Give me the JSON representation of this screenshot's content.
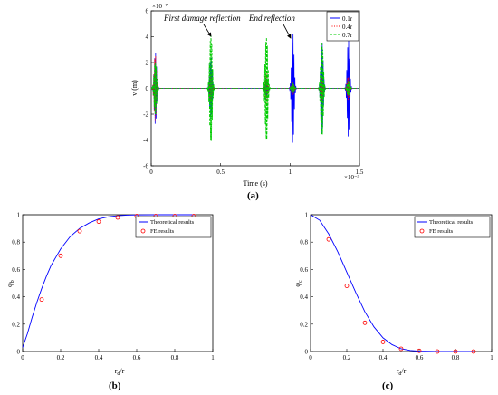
{
  "panel_labels": {
    "a": "(a)",
    "b": "(b)",
    "c": "(c)"
  },
  "chart_data": [
    {
      "type": "line",
      "panel": "(a)",
      "xlabel": "Time (s)",
      "ylabel": "v (m)",
      "x_multiplier": "×10⁻³",
      "y_multiplier": "×10⁻⁷",
      "xlim": [
        0,
        1.5
      ],
      "ylim": [
        -6,
        6
      ],
      "xticks": [
        0,
        0.5,
        1,
        1.5
      ],
      "xtick_labels": [
        "0",
        "0.5",
        "1",
        "1.5"
      ],
      "yticks": [
        -6,
        -4,
        -2,
        0,
        2,
        4,
        6
      ],
      "ytick_labels": [
        "-6",
        "-4",
        "-2",
        "0",
        "2",
        "4",
        "6"
      ],
      "legend": {
        "placement": "top-right"
      },
      "annotations": [
        "First damage reflection",
        "End reflection"
      ],
      "series": [
        {
          "name": "0.1r",
          "color": "#0000ff",
          "dash": "solid",
          "packets": [
            {
              "t": 0.03,
              "amp": 2.8
            },
            {
              "t": 0.43,
              "amp": 2.4
            },
            {
              "t": 0.83,
              "amp": 0.8
            },
            {
              "t": 1.02,
              "amp": 4.3
            },
            {
              "t": 1.23,
              "amp": 3.6
            },
            {
              "t": 1.42,
              "amp": 3.8
            }
          ]
        },
        {
          "name": "0.4r",
          "color": "#ff0000",
          "dash": "dotted",
          "packets": [
            {
              "t": 0.03,
              "amp": 2.8
            },
            {
              "t": 0.43,
              "amp": 1.2
            },
            {
              "t": 0.83,
              "amp": 1.4
            },
            {
              "t": 1.02,
              "amp": 0.6
            },
            {
              "t": 1.23,
              "amp": 1.0
            },
            {
              "t": 1.42,
              "amp": 1.0
            }
          ]
        },
        {
          "name": "0.7r",
          "color": "#00cc00",
          "dash": "dashed",
          "packets": [
            {
              "t": 0.03,
              "amp": 2.8
            },
            {
              "t": 0.43,
              "amp": 5.7
            },
            {
              "t": 0.83,
              "amp": 5.5
            },
            {
              "t": 1.02,
              "amp": 0.5
            },
            {
              "t": 1.23,
              "amp": 5.0
            },
            {
              "t": 1.42,
              "amp": 0.8
            }
          ]
        }
      ]
    },
    {
      "type": "line",
      "panel": "(b)",
      "xlabel": "r_d/r",
      "ylabel": "φ_b",
      "xlim": [
        0,
        1
      ],
      "ylim": [
        0,
        1
      ],
      "xticks": [
        0,
        0.2,
        0.4,
        0.6,
        0.8,
        1
      ],
      "xtick_labels": [
        "0",
        "0.2",
        "0.4",
        "0.6",
        "0.8",
        "1"
      ],
      "yticks": [
        0,
        0.2,
        0.4,
        0.6,
        0.8,
        1
      ],
      "ytick_labels": [
        "0",
        "0.2",
        "0.4",
        "0.6",
        "0.8",
        "1"
      ],
      "legend": {
        "placement": "top-right"
      },
      "series": [
        {
          "name": "Theoretical results",
          "color": "#0000ff",
          "style": "line",
          "x": [
            0,
            0.025,
            0.05,
            0.075,
            0.1,
            0.125,
            0.15,
            0.175,
            0.2,
            0.25,
            0.3,
            0.35,
            0.4,
            0.45,
            0.5,
            0.55,
            0.6,
            0.7,
            0.8,
            0.9
          ],
          "y": [
            0.03,
            0.13,
            0.25,
            0.36,
            0.46,
            0.55,
            0.63,
            0.69,
            0.75,
            0.84,
            0.9,
            0.94,
            0.97,
            0.985,
            0.993,
            0.997,
            0.999,
            1.0,
            1.0,
            1.0
          ]
        },
        {
          "name": "FE results",
          "color": "#ff0000",
          "style": "markers",
          "x": [
            0.1,
            0.2,
            0.3,
            0.4,
            0.5,
            0.6,
            0.7,
            0.8,
            0.9
          ],
          "y": [
            0.38,
            0.7,
            0.88,
            0.95,
            0.98,
            0.99,
            0.99,
            0.99,
            0.99
          ]
        }
      ]
    },
    {
      "type": "line",
      "panel": "(c)",
      "xlabel": "r_d/r",
      "ylabel": "φ_c",
      "xlim": [
        0,
        1
      ],
      "ylim": [
        0,
        1
      ],
      "xticks": [
        0,
        0.2,
        0.4,
        0.6,
        0.8,
        1
      ],
      "xtick_labels": [
        "0",
        "0.2",
        "0.4",
        "0.6",
        "0.8",
        "1"
      ],
      "yticks": [
        0,
        0.2,
        0.4,
        0.6,
        0.8,
        1
      ],
      "ytick_labels": [
        "0",
        "0.2",
        "0.4",
        "0.6",
        "0.8",
        "1"
      ],
      "legend": {
        "placement": "top-right"
      },
      "series": [
        {
          "name": "Theoretical results",
          "color": "#0000ff",
          "style": "line",
          "x": [
            0,
            0.05,
            0.1,
            0.15,
            0.2,
            0.25,
            0.3,
            0.35,
            0.4,
            0.45,
            0.5,
            0.55,
            0.6,
            0.7,
            0.8,
            0.9
          ],
          "y": [
            1.0,
            0.96,
            0.86,
            0.73,
            0.58,
            0.43,
            0.29,
            0.18,
            0.1,
            0.05,
            0.02,
            0.008,
            0.003,
            0.0,
            0.0,
            0.0
          ]
        },
        {
          "name": "FE results",
          "color": "#ff0000",
          "style": "markers",
          "x": [
            0.1,
            0.2,
            0.3,
            0.4,
            0.5,
            0.6,
            0.7,
            0.8,
            0.9
          ],
          "y": [
            0.82,
            0.48,
            0.21,
            0.07,
            0.02,
            0.005,
            0.0,
            0.0,
            0.0
          ]
        }
      ]
    }
  ]
}
